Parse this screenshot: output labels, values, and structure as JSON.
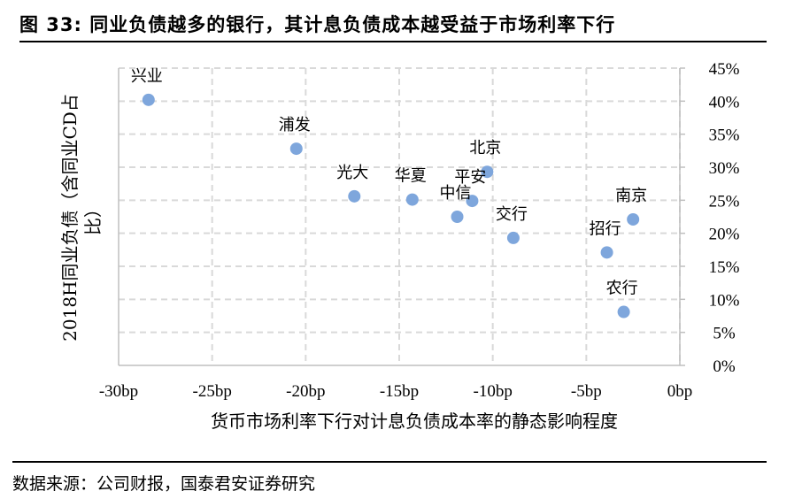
{
  "figure": {
    "title": "图 33: 同业负债越多的银行，其计息负债成本越受益于市场利率下行",
    "source": "数据来源：公司财报，国泰君安证券研究"
  },
  "chart_data": {
    "type": "scatter",
    "xlabel": "货币市场利率下行对计息负债成本率的静态影响程度",
    "ylabel_line1": "2018H同业负债（含同业CD占",
    "ylabel_line2": "比）",
    "xlim": [
      -30,
      0
    ],
    "ylim": [
      0,
      45
    ],
    "x_ticks": [
      -30,
      -25,
      -20,
      -15,
      -10,
      -5,
      0
    ],
    "x_tick_labels": [
      "-30bp",
      "-25bp",
      "-20bp",
      "-15bp",
      "-10bp",
      "-5bp",
      "0bp"
    ],
    "y_ticks": [
      0,
      5,
      10,
      15,
      20,
      25,
      30,
      35,
      40,
      45
    ],
    "y_tick_labels": [
      "0%",
      "5%",
      "10%",
      "15%",
      "20%",
      "25%",
      "30%",
      "35%",
      "40%",
      "45%"
    ],
    "grid": true,
    "y_axis_side": "right",
    "marker_color": "#7ea6dc",
    "points": [
      {
        "label": "兴业",
        "x": -28.4,
        "y": 40.2
      },
      {
        "label": "浦发",
        "x": -20.5,
        "y": 32.8
      },
      {
        "label": "光大",
        "x": -17.4,
        "y": 25.6
      },
      {
        "label": "华夏",
        "x": -14.3,
        "y": 25.1
      },
      {
        "label": "中信",
        "x": -11.9,
        "y": 22.5
      },
      {
        "label": "平安",
        "x": -11.1,
        "y": 24.9
      },
      {
        "label": "北京",
        "x": -10.3,
        "y": 29.3
      },
      {
        "label": "交行",
        "x": -8.9,
        "y": 19.3
      },
      {
        "label": "南京",
        "x": -2.5,
        "y": 22.1
      },
      {
        "label": "招行",
        "x": -3.9,
        "y": 17.1
      },
      {
        "label": "农行",
        "x": -3.0,
        "y": 8.1
      }
    ]
  }
}
